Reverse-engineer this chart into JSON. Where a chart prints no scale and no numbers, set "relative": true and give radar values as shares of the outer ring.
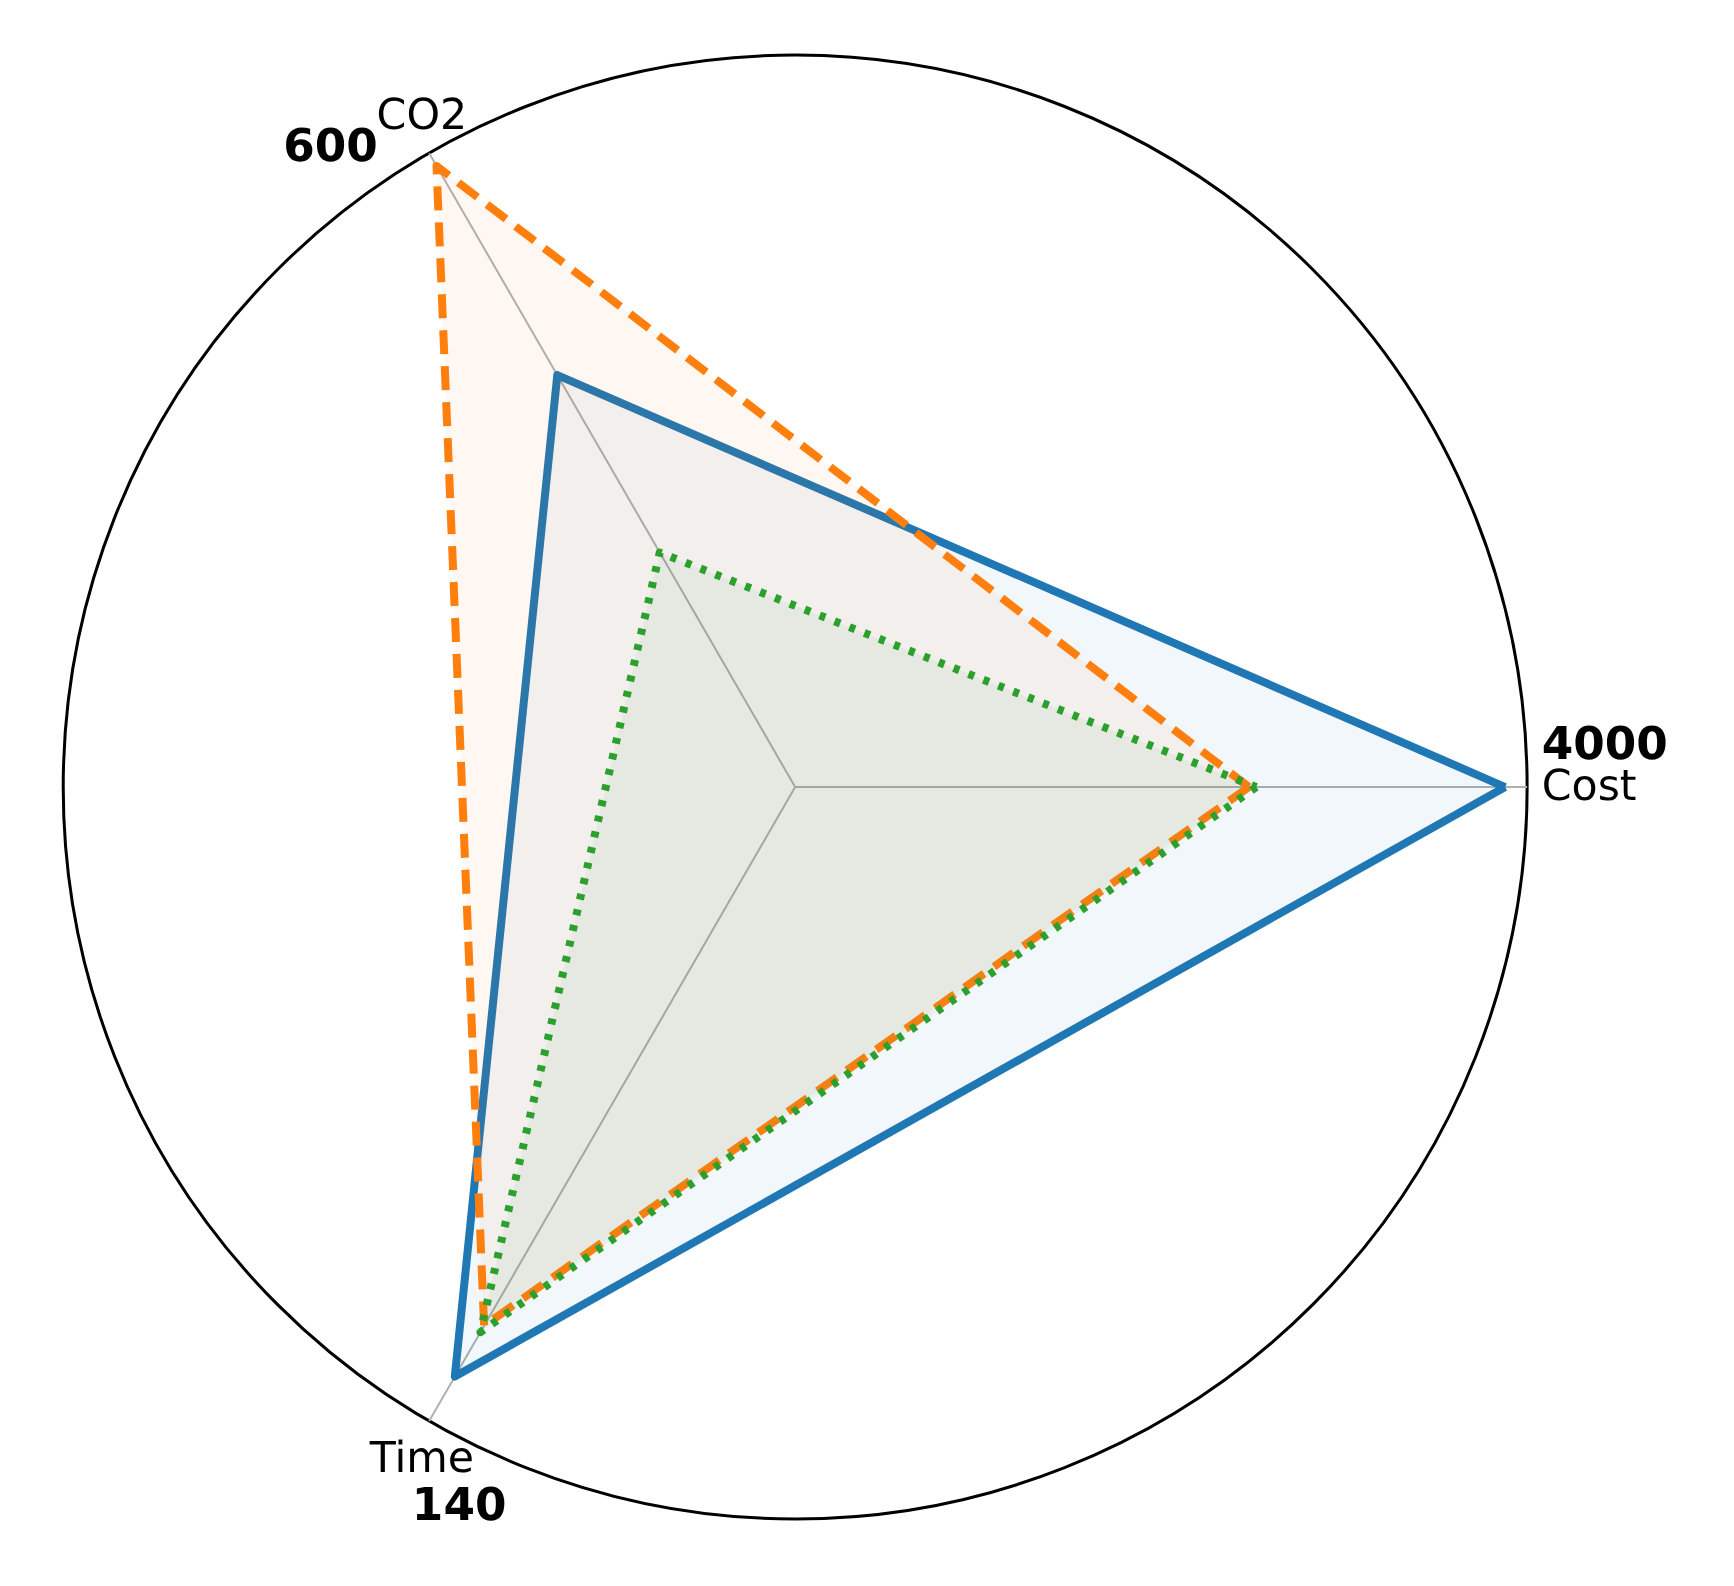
{
  "chart_data": {
    "type": "radar",
    "relative": true,
    "categories": [
      "Cost",
      "Time",
      "CO2"
    ],
    "series": [
      {
        "color": "#1f77b4",
        "line_style": "solid",
        "values": [
          0.97,
          0.93,
          0.65
        ]
      },
      {
        "color": "#ff7f0e",
        "line_style": "dashed",
        "values": [
          0.62,
          0.85,
          0.98
        ]
      },
      {
        "color": "#2ca02c",
        "line_style": "dotted",
        "values": [
          0.63,
          0.86,
          0.37
        ]
      }
    ],
    "annotations": [
      "4000",
      "140",
      "600"
    ]
  }
}
